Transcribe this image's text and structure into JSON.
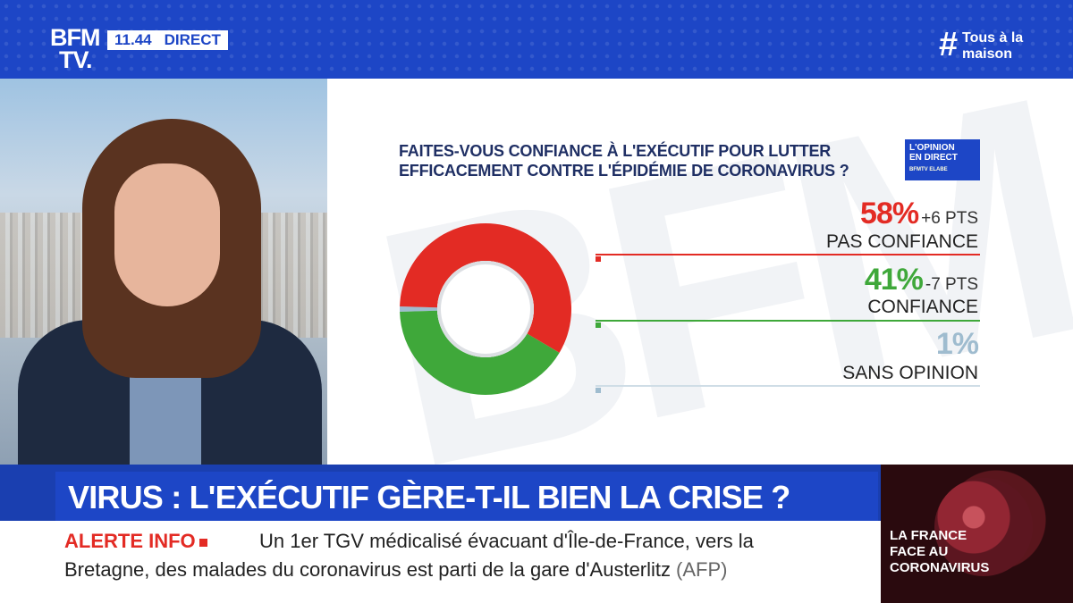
{
  "header": {
    "logo_line1": "BFM",
    "logo_line2": "TV.",
    "time": "11.44",
    "live": "DIRECT",
    "hashtag_symbol": "#",
    "hashtag_line1": "Tous à la",
    "hashtag_line2": "maison"
  },
  "panel": {
    "question_line1": "FAITES-VOUS CONFIANCE À L'EXÉCUTIF POUR LUTTER",
    "question_line2": "EFFICACEMENT CONTRE L'ÉPIDÉMIE DE CORONAVIRUS ?",
    "badge_line1": "L'OPINION",
    "badge_line2": "EN DIRECT",
    "badge_line3": "BFMTV ELABE"
  },
  "chart_data": {
    "type": "pie",
    "title": "FAITES-VOUS CONFIANCE À L'EXÉCUTIF POUR LUTTER EFFICACEMENT CONTRE L'ÉPIDÉMIE DE CORONAVIRUS ?",
    "slices": [
      {
        "label": "PAS CONFIANCE",
        "value": 58,
        "display": "58%",
        "delta": "+6 PTS",
        "color": "#e32b24"
      },
      {
        "label": "CONFIANCE",
        "value": 41,
        "display": "41%",
        "delta": "-7 PTS",
        "color": "#3fa83a"
      },
      {
        "label": "SANS OPINION",
        "value": 1,
        "display": "1%",
        "delta": "",
        "color": "#9fbccf"
      }
    ],
    "donut": true
  },
  "headline": "VIRUS : L'EXÉCUTIF GÈRE-T-IL BIEN LA CRISE ?",
  "ticker": {
    "label": "ALERTE INFO",
    "line1": "Un 1er TGV médicalisé évacuant d'Île-de-France, vers la",
    "line2": "Bretagne, des malades du coronavirus est parti de la gare d'Austerlitz",
    "source": "(AFP)"
  },
  "promo": {
    "line1": "LA FRANCE",
    "line2": "FACE AU",
    "line3": "CORONAVIRUS"
  }
}
